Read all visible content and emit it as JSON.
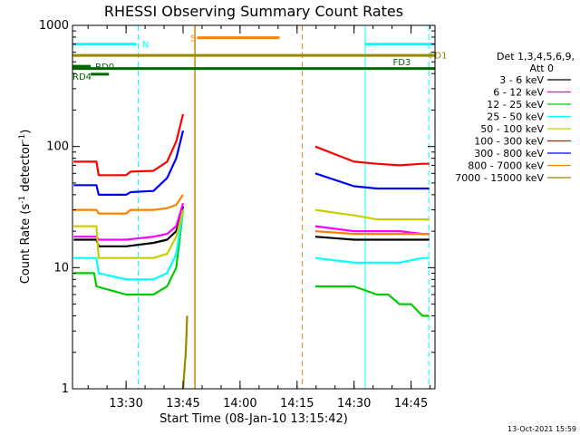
{
  "chart_data": {
    "type": "line",
    "title": "RHESSI Observing Summary Count Rates",
    "xlabel": "Start Time (08-Jan-10 13:15:42)",
    "ylabel_main": "Count Rate (s",
    "ylabel_sup1": "-1",
    "ylabel_mid": " detector",
    "ylabel_sup2": "-1",
    "ylabel_end": ")",
    "yscale": "log",
    "ylim": [
      1,
      1000
    ],
    "xlim": [
      13.265,
      14.855
    ],
    "y_ticks": [
      {
        "value": 1,
        "label": "1"
      },
      {
        "value": 10,
        "label": "10"
      },
      {
        "value": 100,
        "label": "100"
      },
      {
        "value": 1000,
        "label": "1000"
      }
    ],
    "x_ticks": [
      {
        "value": 13.5,
        "label": "13:30"
      },
      {
        "value": 13.75,
        "label": "13:45"
      },
      {
        "value": 14.0,
        "label": "14:00"
      },
      {
        "value": 14.25,
        "label": "14:15"
      },
      {
        "value": 14.5,
        "label": "14:30"
      },
      {
        "value": 14.75,
        "label": "14:45"
      }
    ],
    "legend_header": [
      "Det 1,3,4,5,6,9,",
      "Att 0"
    ],
    "series": [
      {
        "name": "3 - 6 keV",
        "color": "#000000",
        "seg1": [
          [
            13.27,
            17
          ],
          [
            13.37,
            17
          ],
          [
            13.38,
            15
          ],
          [
            13.5,
            15
          ],
          [
            13.62,
            16
          ],
          [
            13.68,
            17
          ],
          [
            13.72,
            20
          ],
          [
            13.75,
            32
          ]
        ],
        "seg2": [
          [
            14.33,
            18
          ],
          [
            14.5,
            17
          ],
          [
            14.6,
            17
          ],
          [
            14.7,
            17
          ],
          [
            14.8,
            17
          ],
          [
            14.83,
            17
          ]
        ]
      },
      {
        "name": "6 - 12 keV",
        "color": "#ff00ff",
        "seg1": [
          [
            13.27,
            18
          ],
          [
            13.37,
            18
          ],
          [
            13.38,
            17
          ],
          [
            13.5,
            17
          ],
          [
            13.62,
            18
          ],
          [
            13.68,
            19
          ],
          [
            13.72,
            22
          ],
          [
            13.75,
            34
          ]
        ],
        "seg2": [
          [
            14.33,
            22
          ],
          [
            14.5,
            20
          ],
          [
            14.6,
            20
          ],
          [
            14.7,
            20
          ],
          [
            14.8,
            19
          ],
          [
            14.83,
            19
          ]
        ]
      },
      {
        "name": "12 - 25 keV",
        "color": "#00cc00",
        "seg1": [
          [
            13.27,
            9
          ],
          [
            13.36,
            9
          ],
          [
            13.37,
            7
          ],
          [
            13.5,
            6
          ],
          [
            13.62,
            6
          ],
          [
            13.68,
            7
          ],
          [
            13.72,
            10
          ],
          [
            13.75,
            30
          ]
        ],
        "seg2": [
          [
            14.33,
            7
          ],
          [
            14.5,
            7
          ],
          [
            14.6,
            6
          ],
          [
            14.65,
            6
          ],
          [
            14.7,
            5
          ],
          [
            14.75,
            5
          ],
          [
            14.8,
            4
          ],
          [
            14.83,
            4
          ]
        ]
      },
      {
        "name": "25 - 50 keV",
        "color": "#00ffff",
        "seg1": [
          [
            13.27,
            12
          ],
          [
            13.37,
            12
          ],
          [
            13.38,
            9
          ],
          [
            13.5,
            8
          ],
          [
            13.62,
            8
          ],
          [
            13.68,
            9
          ],
          [
            13.72,
            13
          ],
          [
            13.75,
            30
          ]
        ],
        "seg2": [
          [
            14.33,
            12
          ],
          [
            14.5,
            11
          ],
          [
            14.6,
            11
          ],
          [
            14.7,
            11
          ],
          [
            14.8,
            12
          ],
          [
            14.83,
            12
          ]
        ]
      },
      {
        "name": "50 - 100 keV",
        "color": "#cccc00",
        "seg1": [
          [
            13.27,
            22
          ],
          [
            13.37,
            22
          ],
          [
            13.38,
            12
          ],
          [
            13.5,
            12
          ],
          [
            13.62,
            12
          ],
          [
            13.68,
            13
          ],
          [
            13.72,
            18
          ],
          [
            13.75,
            30
          ]
        ],
        "seg2": [
          [
            14.33,
            30
          ],
          [
            14.5,
            27
          ],
          [
            14.6,
            25
          ],
          [
            14.7,
            25
          ],
          [
            14.8,
            25
          ],
          [
            14.83,
            25
          ]
        ]
      },
      {
        "name": "100 - 300 keV",
        "color": "#ff0000",
        "seg1": [
          [
            13.27,
            75
          ],
          [
            13.37,
            75
          ],
          [
            13.38,
            58
          ],
          [
            13.5,
            58
          ],
          [
            13.52,
            62
          ],
          [
            13.62,
            63
          ],
          [
            13.68,
            75
          ],
          [
            13.72,
            110
          ],
          [
            13.75,
            185
          ]
        ],
        "seg2": [
          [
            14.33,
            100
          ],
          [
            14.5,
            75
          ],
          [
            14.6,
            72
          ],
          [
            14.7,
            70
          ],
          [
            14.8,
            72
          ],
          [
            14.83,
            72
          ]
        ]
      },
      {
        "name": "300 - 800 keV",
        "color": "#0000ff",
        "seg1": [
          [
            13.27,
            48
          ],
          [
            13.37,
            48
          ],
          [
            13.38,
            40
          ],
          [
            13.5,
            40
          ],
          [
            13.52,
            42
          ],
          [
            13.62,
            43
          ],
          [
            13.68,
            55
          ],
          [
            13.72,
            80
          ],
          [
            13.75,
            135
          ]
        ],
        "seg2": [
          [
            14.33,
            60
          ],
          [
            14.5,
            47
          ],
          [
            14.6,
            45
          ],
          [
            14.7,
            45
          ],
          [
            14.8,
            45
          ],
          [
            14.83,
            45
          ]
        ]
      },
      {
        "name": "800 - 7000 keV",
        "color": "#ff8000",
        "seg1": [
          [
            13.27,
            30
          ],
          [
            13.37,
            30
          ],
          [
            13.38,
            28
          ],
          [
            13.5,
            28
          ],
          [
            13.52,
            30
          ],
          [
            13.62,
            30
          ],
          [
            13.68,
            31
          ],
          [
            13.72,
            33
          ],
          [
            13.75,
            40
          ]
        ],
        "seg2": [
          [
            14.33,
            20
          ],
          [
            14.5,
            19
          ],
          [
            14.6,
            19
          ],
          [
            14.7,
            19
          ],
          [
            14.8,
            19
          ],
          [
            14.83,
            19
          ]
        ]
      },
      {
        "name": "7000 - 15000 keV",
        "color": "#998800",
        "seg1": [
          [
            13.75,
            1
          ],
          [
            13.762,
            2
          ],
          [
            13.768,
            4
          ]
        ],
        "seg2": []
      }
    ],
    "cyan_vlines": [
      13.265,
      13.553,
      14.549,
      14.828
    ],
    "orange_vline": 14.273,
    "gold_vline": 13.802,
    "flags": [
      {
        "label": "N",
        "color": "#00ffff",
        "x_from": 13.265,
        "x_to": 13.546,
        "y": 700,
        "label_x": 13.57,
        "label_y": 700
      },
      {
        "label": "N",
        "color": "#00ffff",
        "x_from": 14.549,
        "x_to": 14.855,
        "y": 700,
        "label_x": null,
        "label_y": null
      },
      {
        "label": "S",
        "color": "#ff8000",
        "x_from": 13.812,
        "x_to": 14.173,
        "y": 790,
        "label_x": 13.782,
        "label_y": 790
      },
      {
        "label": "FD1",
        "color": "#998800",
        "x_from": 13.265,
        "x_to": 14.855,
        "y": 565,
        "label_x": 14.83,
        "label_y": 570
      },
      {
        "label": "FD3",
        "color": "#006600",
        "x_from": 13.265,
        "x_to": 14.855,
        "y": 440,
        "label_x": 14.67,
        "label_y": 500
      },
      {
        "label": "RD0",
        "color": "#006600",
        "x_from": 13.265,
        "x_to": 13.345,
        "y": 460,
        "label_x": 13.365,
        "label_y": 460
      },
      {
        "label": "RD4",
        "color": "#006600",
        "x_from": 13.345,
        "x_to": 13.425,
        "y": 395,
        "label_x": 13.265,
        "label_y": 380
      }
    ],
    "timestamp": "13-Oct-2021 15:59"
  }
}
